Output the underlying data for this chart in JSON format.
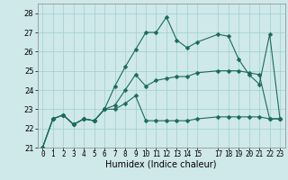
{
  "x_values": [
    0,
    1,
    2,
    3,
    4,
    5,
    6,
    7,
    8,
    9,
    10,
    11,
    12,
    13,
    14,
    15,
    17,
    18,
    19,
    20,
    21,
    22,
    23
  ],
  "line1": [
    21.0,
    22.5,
    22.7,
    22.2,
    22.5,
    22.4,
    23.0,
    24.2,
    25.2,
    26.1,
    27.0,
    27.0,
    27.8,
    26.6,
    26.2,
    26.5,
    26.9,
    26.8,
    25.6,
    24.8,
    24.3,
    26.9,
    22.5
  ],
  "line2": [
    21.0,
    22.5,
    22.7,
    22.2,
    22.5,
    22.4,
    23.0,
    23.2,
    24.0,
    24.8,
    24.2,
    24.5,
    24.6,
    24.7,
    24.7,
    24.9,
    25.0,
    25.0,
    25.0,
    24.9,
    24.8,
    22.5,
    22.5
  ],
  "line3": [
    21.0,
    22.5,
    22.7,
    22.2,
    22.5,
    22.4,
    23.0,
    23.0,
    23.3,
    23.7,
    22.4,
    22.4,
    22.4,
    22.4,
    22.4,
    22.5,
    22.6,
    22.6,
    22.6,
    22.6,
    22.6,
    22.5,
    22.5
  ],
  "xlabel": "Humidex (Indice chaleur)",
  "xlim": [
    -0.5,
    23.5
  ],
  "ylim": [
    21.0,
    28.5
  ],
  "yticks": [
    21,
    22,
    23,
    24,
    25,
    26,
    27,
    28
  ],
  "xticks": [
    0,
    1,
    2,
    3,
    4,
    5,
    6,
    7,
    8,
    9,
    10,
    11,
    12,
    13,
    14,
    15,
    17,
    18,
    19,
    20,
    21,
    22,
    23
  ],
  "xtick_labels": [
    "0",
    "1",
    "2",
    "3",
    "4",
    "5",
    "6",
    "7",
    "8",
    "9",
    "10",
    "11",
    "12",
    "13",
    "14",
    "15",
    "17",
    "18",
    "19",
    "20",
    "21",
    "22",
    "23"
  ],
  "bg_color": "#cfe8ea",
  "grid_color": "#9ecfcf",
  "line_color": "#1a6b5a",
  "markersize": 2.5,
  "linewidth": 0.8,
  "xlabel_fontsize": 7,
  "tick_fontsize": 5.5,
  "ytick_fontsize": 6.0
}
